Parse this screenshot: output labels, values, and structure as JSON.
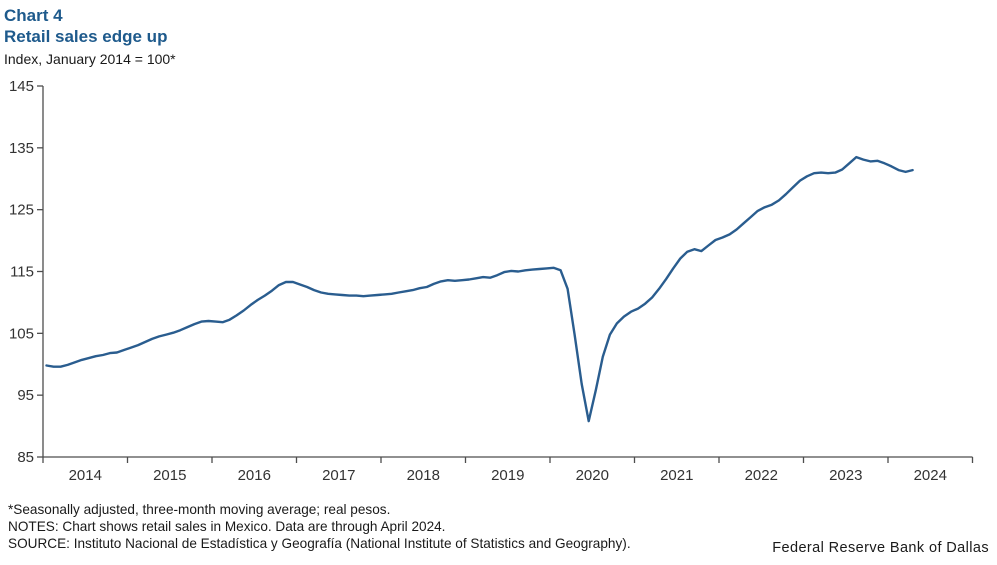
{
  "header": {
    "chart_label": "Chart 4",
    "title": "Retail sales edge up",
    "subtitle": "Index, January 2014 = 100*"
  },
  "chart_data": {
    "type": "line",
    "title": "Retail sales edge up",
    "unit_label": "Index, January 2014 = 100*",
    "frequency": "monthly",
    "x_range": "January 2014 - April 2024",
    "x_tick_labels": [
      "2014",
      "2015",
      "2016",
      "2017",
      "2018",
      "2019",
      "2020",
      "2021",
      "2022",
      "2023",
      "2024"
    ],
    "y_ticks": [
      85,
      95,
      105,
      115,
      125,
      135,
      145
    ],
    "ylim": [
      85,
      145
    ],
    "grid": false,
    "legend": "none",
    "axis_color": "#4d4d4d",
    "series": [
      {
        "name": "Retail sales, Mexico (index, Jan 2014 = 100)",
        "color": "#2a5d8f",
        "values": [
          99.8,
          99.6,
          99.6,
          99.9,
          100.3,
          100.7,
          101.0,
          101.3,
          101.5,
          101.8,
          101.9,
          102.3,
          102.7,
          103.1,
          103.6,
          104.1,
          104.5,
          104.8,
          105.1,
          105.5,
          106.0,
          106.5,
          106.9,
          107.0,
          106.9,
          106.8,
          107.2,
          107.9,
          108.7,
          109.6,
          110.4,
          111.1,
          111.9,
          112.8,
          113.3,
          113.3,
          112.9,
          112.5,
          112.0,
          111.6,
          111.4,
          111.3,
          111.2,
          111.1,
          111.1,
          111.0,
          111.1,
          111.2,
          111.3,
          111.4,
          111.6,
          111.8,
          112.0,
          112.3,
          112.5,
          113.0,
          113.4,
          113.6,
          113.5,
          113.6,
          113.7,
          113.9,
          114.1,
          114.0,
          114.4,
          114.9,
          115.1,
          115.0,
          115.2,
          115.3,
          115.4,
          115.5,
          115.6,
          115.2,
          112.2,
          104.8,
          96.8,
          90.8,
          95.8,
          101.2,
          104.8,
          106.6,
          107.7,
          108.5,
          109.0,
          109.8,
          110.8,
          112.2,
          113.8,
          115.5,
          117.1,
          118.2,
          118.6,
          118.3,
          119.2,
          120.1,
          120.5,
          121.0,
          121.8,
          122.8,
          123.8,
          124.8,
          125.4,
          125.8,
          126.5,
          127.5,
          128.6,
          129.7,
          130.4,
          130.9,
          131.0,
          130.9,
          131.0,
          131.5,
          132.5,
          133.5,
          133.1,
          132.8,
          132.9,
          132.5,
          132.0,
          131.4,
          131.1,
          131.4
        ]
      }
    ]
  },
  "footnotes": {
    "line1": "*Seasonally adjusted, three-month moving average; real pesos.",
    "line2": "NOTES: Chart shows retail sales in Mexico.  Data are through April 2024.",
    "line3": "SOURCE: Instituto Nacional de Estadística y Geografía (National Institute of Statistics and Geography)."
  },
  "branding": {
    "bank_name": "Federal Reserve Bank of Dallas"
  }
}
